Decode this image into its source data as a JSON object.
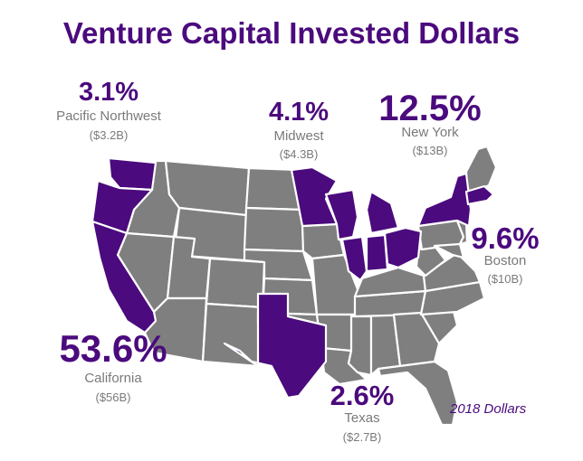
{
  "title": "Venture Capital Invested Dollars",
  "note": "2018 Dollars",
  "colors": {
    "highlight": "#4b0a7d",
    "base": "#7f7f7f",
    "label": "#7a7a7a"
  },
  "regions": {
    "pacific_northwest": {
      "pct": "3.1%",
      "name": "Pacific Northwest",
      "amount": "($3.2B)"
    },
    "midwest": {
      "pct": "4.1%",
      "name": "Midwest",
      "amount": "($4.3B)"
    },
    "new_york": {
      "pct": "12.5%",
      "name": "New York",
      "amount": "($13B)"
    },
    "boston": {
      "pct": "9.6%",
      "name": "Boston",
      "amount": "($10B)"
    },
    "california": {
      "pct": "53.6%",
      "name": "California",
      "amount": "($56B)"
    },
    "texas": {
      "pct": "2.6%",
      "name": "Texas",
      "amount": "($2.7B)"
    }
  }
}
